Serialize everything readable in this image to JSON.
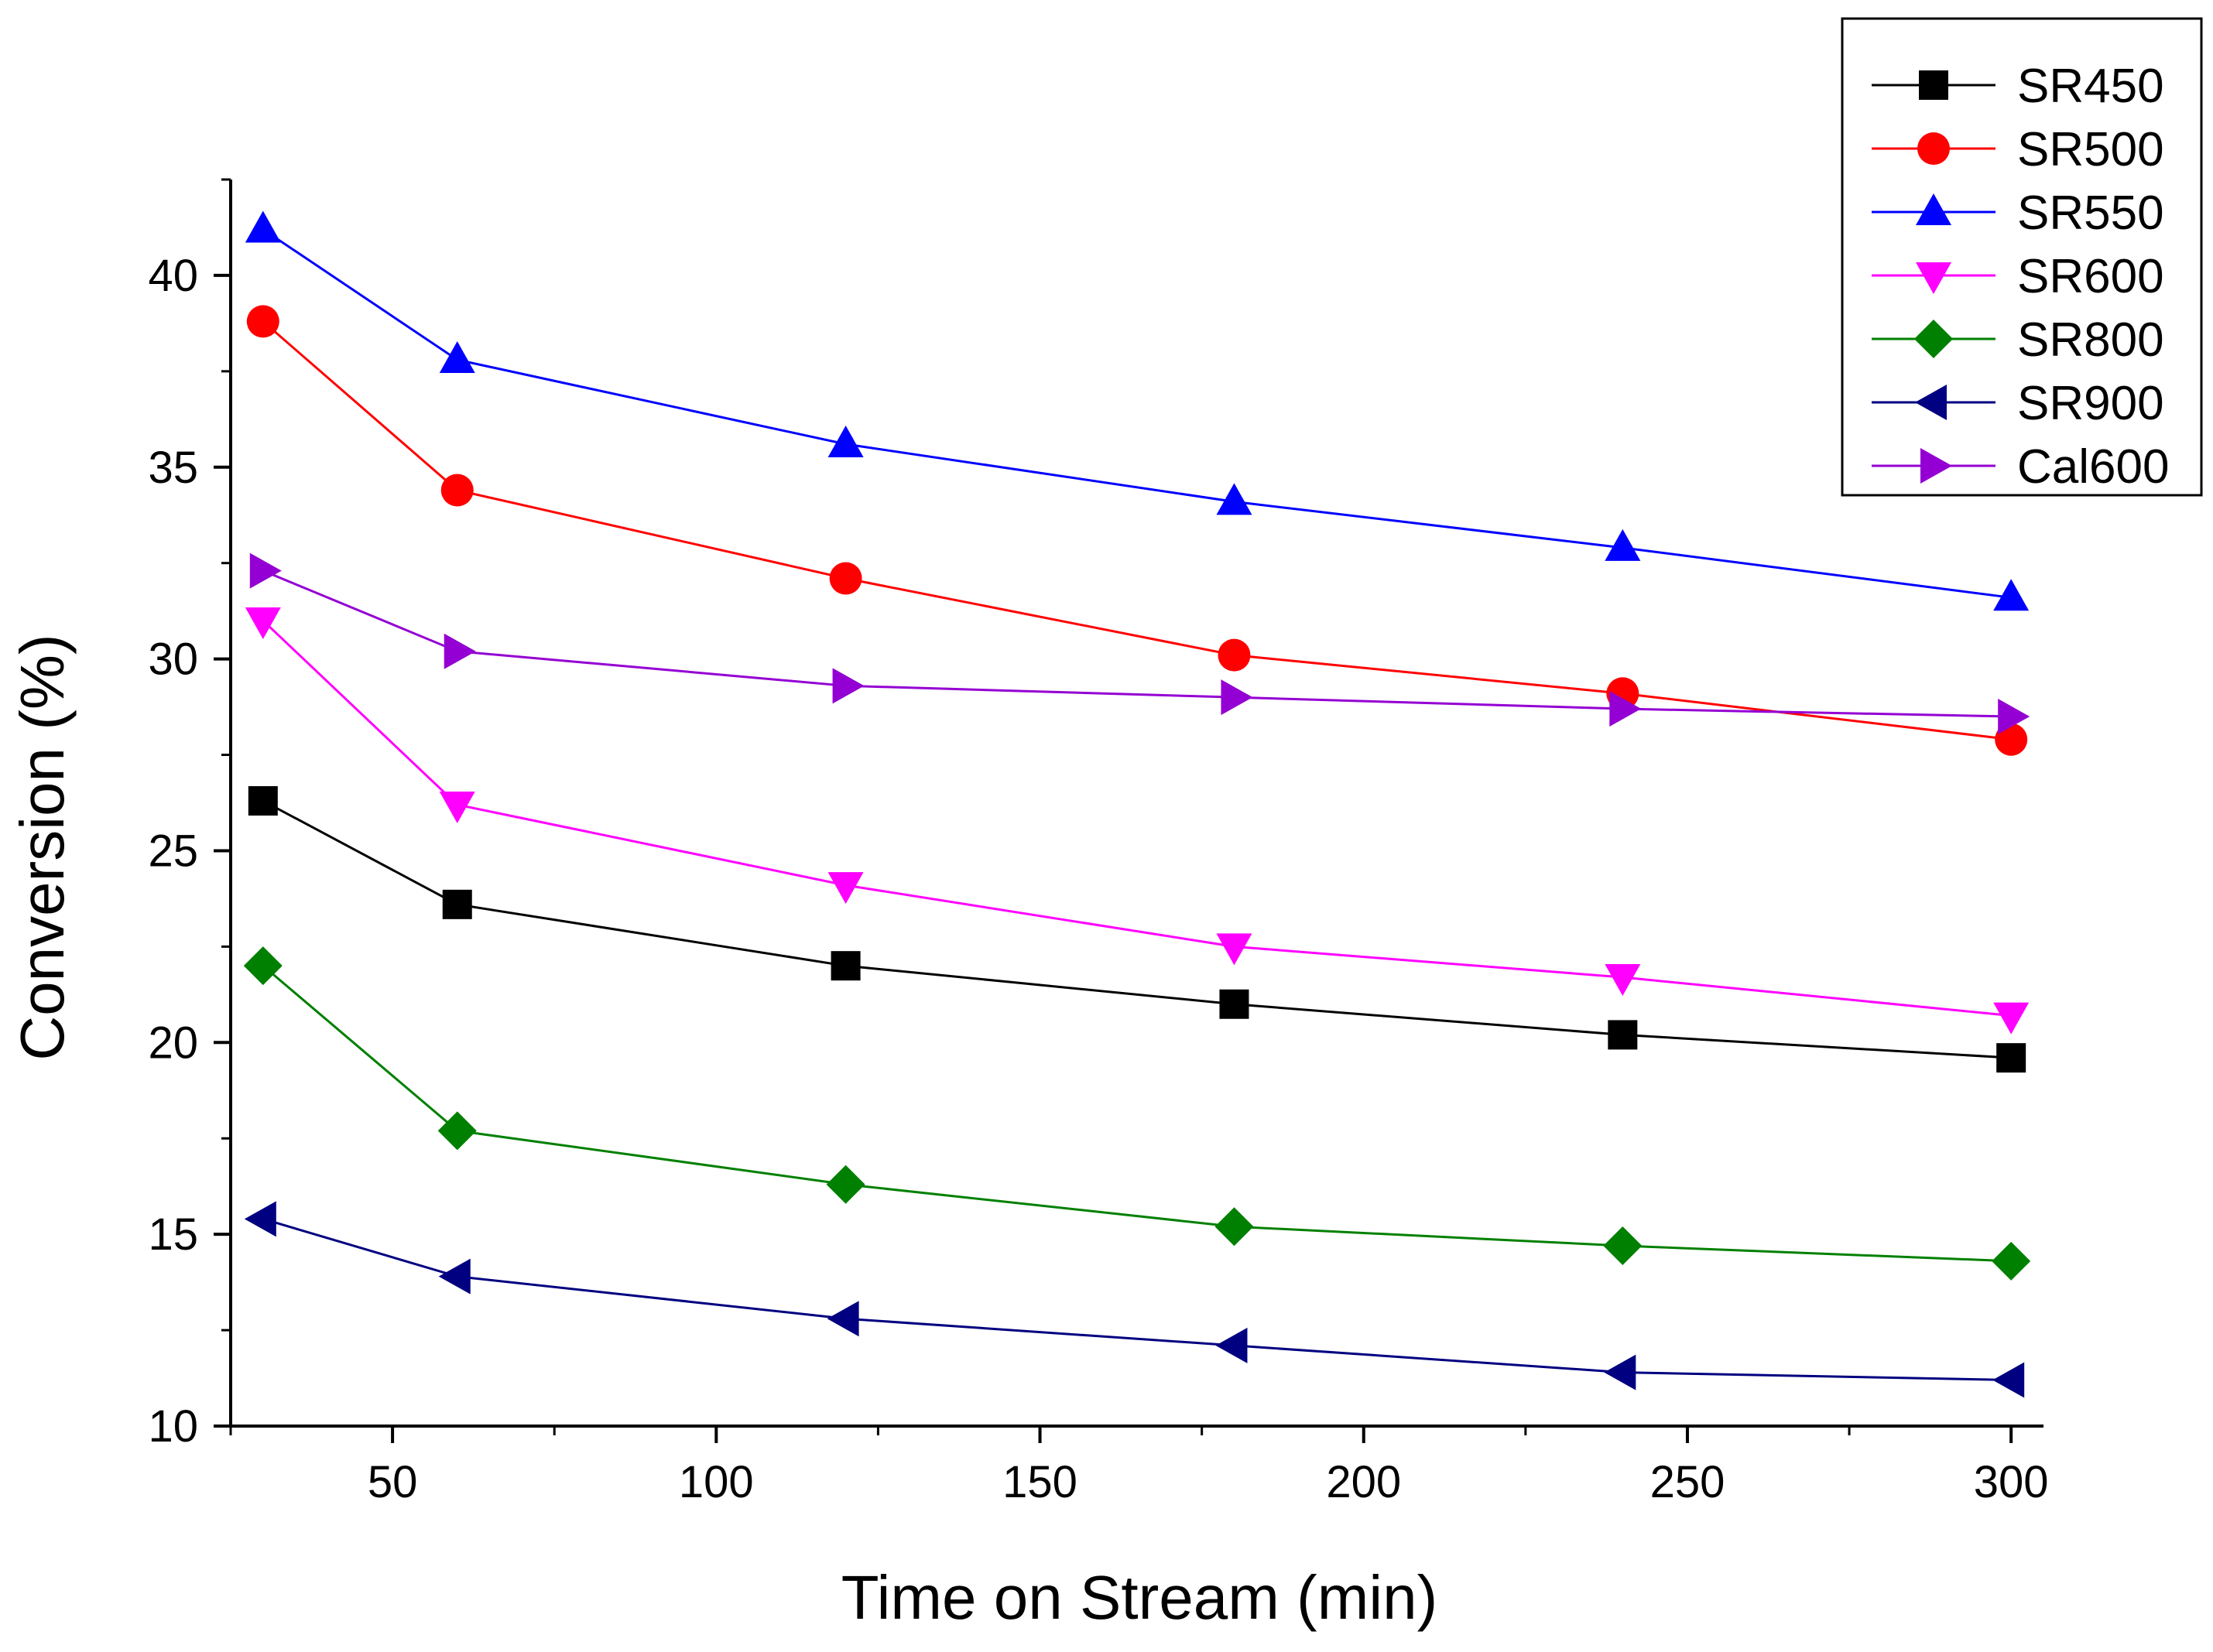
{
  "chart_data": {
    "type": "line",
    "title": "",
    "xlabel": "Time on Stream (min)",
    "ylabel": "Conversion (%)",
    "xlim": [
      25,
      305
    ],
    "ylim": [
      10,
      42.5
    ],
    "xticks": [
      50,
      100,
      150,
      200,
      250,
      300
    ],
    "yticks": [
      10,
      15,
      20,
      25,
      30,
      35,
      40
    ],
    "xtick_labels": [
      "50",
      "100",
      "150",
      "200",
      "250",
      "300"
    ],
    "ytick_labels": [
      "10",
      "15",
      "20",
      "25",
      "30",
      "35",
      "40"
    ],
    "grid": false,
    "legend_position": "top-right",
    "x": [
      30,
      60,
      120,
      180,
      240,
      300
    ],
    "series": [
      {
        "name": "SR450",
        "color": "#000000",
        "marker": "square",
        "values": [
          26.3,
          23.6,
          22.0,
          21.0,
          20.2,
          19.6
        ]
      },
      {
        "name": "SR500",
        "color": "#ff0000",
        "marker": "circle",
        "values": [
          38.8,
          34.4,
          32.1,
          30.1,
          29.1,
          27.9
        ]
      },
      {
        "name": "SR550",
        "color": "#0000ff",
        "marker": "triangle-up",
        "values": [
          41.2,
          37.8,
          35.6,
          34.1,
          32.9,
          31.6
        ]
      },
      {
        "name": "SR600",
        "color": "#ff00ff",
        "marker": "triangle-down",
        "values": [
          31.0,
          26.2,
          24.1,
          22.5,
          21.7,
          20.7
        ]
      },
      {
        "name": "SR800",
        "color": "#008000",
        "marker": "diamond",
        "values": [
          22.0,
          17.7,
          16.3,
          15.2,
          14.7,
          14.3
        ]
      },
      {
        "name": "SR900",
        "color": "#000080",
        "marker": "triangle-left",
        "values": [
          15.4,
          13.9,
          12.8,
          12.1,
          11.4,
          11.2
        ]
      },
      {
        "name": "Cal600",
        "color": "#9400d3",
        "marker": "triangle-right",
        "values": [
          32.3,
          30.2,
          29.3,
          29.0,
          28.7,
          28.5
        ]
      }
    ]
  }
}
